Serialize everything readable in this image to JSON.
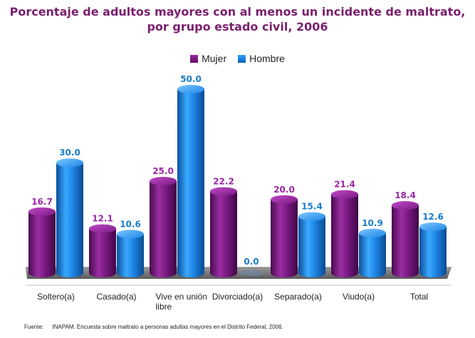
{
  "title_line1": "Porcentaje de adultos mayores con al menos un incidente de maltrato,",
  "title_line2": "por grupo estado civil, 2006",
  "legend": {
    "mujer": "Mujer",
    "hombre": "Hombre"
  },
  "colors": {
    "mujer": "#7b1a83",
    "hombre": "#1e86e6",
    "mujer_label": "#9c27a6",
    "hombre_label": "#1a7cc7"
  },
  "source": {
    "label": "Fuente:",
    "text": "INAPAM. Encuesta sobre maltrato a personas adultas mayores en el Distrito Federal, 2006."
  },
  "chart_data": {
    "type": "bar",
    "title": "Porcentaje de adultos mayores con al menos un incidente de maltrato, por grupo estado civil, 2006",
    "categories": [
      "Soltero(a)",
      "Casado(a)",
      "Vive en unión libre",
      "Divorciado(a)",
      "Separado(a)",
      "Viudo(a)",
      "Total"
    ],
    "series": [
      {
        "name": "Mujer",
        "values": [
          16.7,
          12.1,
          25.0,
          22.2,
          20.0,
          21.4,
          18.4
        ]
      },
      {
        "name": "Hombre",
        "values": [
          30.0,
          10.6,
          50.0,
          0.0,
          15.4,
          10.9,
          12.6
        ]
      }
    ],
    "ylim": [
      0,
      50
    ],
    "legend_position": "top-center",
    "grid": false
  }
}
